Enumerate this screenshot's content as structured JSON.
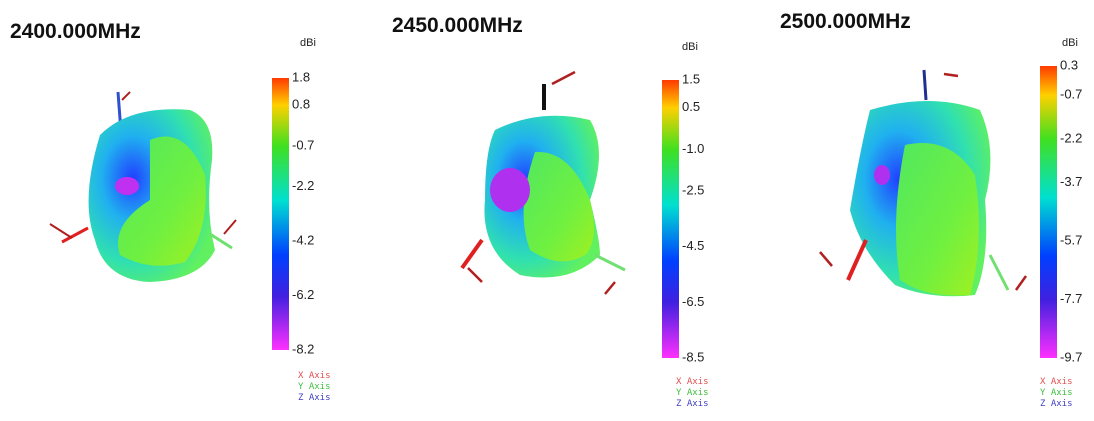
{
  "panels": [
    {
      "title": "2400.000MHz",
      "unit": "dBi",
      "ticks": [
        "1.8",
        "0.8",
        "-0.7",
        "-2.2",
        "-4.2",
        "-6.2",
        "-8.2"
      ],
      "legend": [
        "X Axis",
        "Y Axis",
        "Z Axis"
      ]
    },
    {
      "title": "2450.000MHz",
      "unit": "dBi",
      "ticks": [
        "1.5",
        "0.5",
        "-1.0",
        "-2.5",
        "-4.5",
        "-6.5",
        "-8.5"
      ],
      "legend": [
        "X Axis",
        "Y Axis",
        "Z Axis"
      ]
    },
    {
      "title": "2500.000MHz",
      "unit": "dBi",
      "ticks": [
        "0.3",
        "-0.7",
        "-2.2",
        "-3.7",
        "-5.7",
        "-7.7",
        "-9.7"
      ],
      "legend": [
        "X Axis",
        "Y Axis",
        "Z Axis"
      ]
    }
  ]
}
